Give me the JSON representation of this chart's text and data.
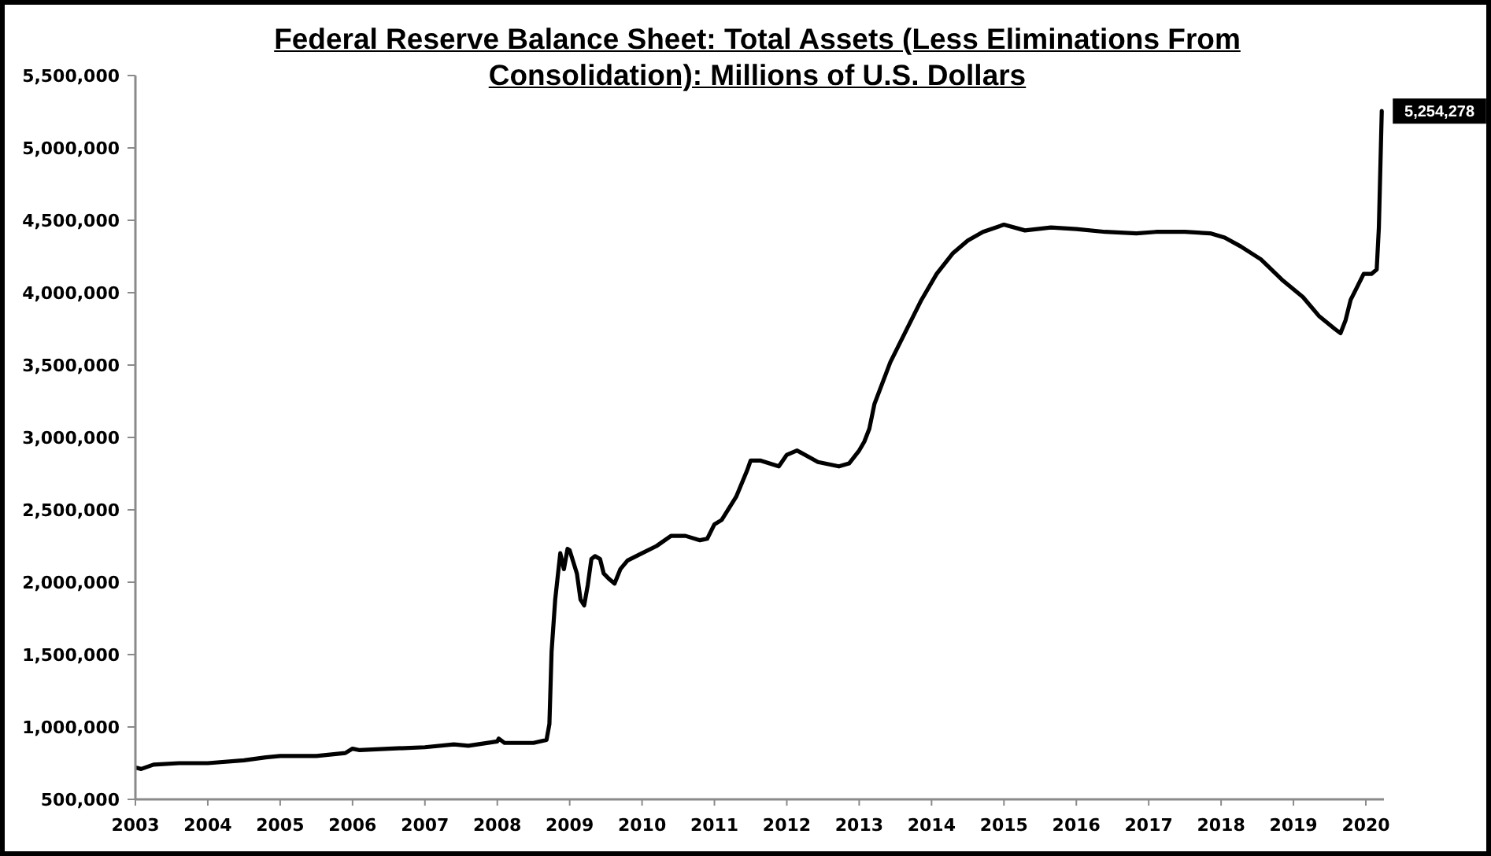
{
  "chart_data": {
    "type": "line",
    "title": "Federal Reserve Balance Sheet: Total Assets (Less Eliminations From Consolidation): Millions of U.S. Dollars",
    "x": [
      2003.0,
      2003.08,
      2003.25,
      2003.6,
      2004.0,
      2004.5,
      2004.8,
      2005.0,
      2005.5,
      2005.9,
      2006.0,
      2006.1,
      2006.5,
      2007.0,
      2007.4,
      2007.6,
      2008.0,
      2008.02,
      2008.1,
      2008.5,
      2008.68,
      2008.72,
      2008.75,
      2008.8,
      2008.87,
      2008.92,
      2008.97,
      2009.0,
      2009.1,
      2009.15,
      2009.2,
      2009.25,
      2009.3,
      2009.35,
      2009.42,
      2009.47,
      2009.55,
      2009.62,
      2009.7,
      2009.8,
      2010.0,
      2010.2,
      2010.4,
      2010.6,
      2010.8,
      2010.9,
      2011.0,
      2011.1,
      2011.3,
      2011.45,
      2011.5,
      2011.64,
      2011.89,
      2012.0,
      2012.14,
      2012.43,
      2012.72,
      2012.86,
      2013.0,
      2013.07,
      2013.14,
      2013.21,
      2013.43,
      2013.64,
      2013.86,
      2014.07,
      2014.29,
      2014.5,
      2014.71,
      2015.0,
      2015.29,
      2015.65,
      2016.0,
      2016.4,
      2016.83,
      2017.1,
      2017.5,
      2017.85,
      2018.05,
      2018.27,
      2018.55,
      2018.84,
      2019.13,
      2019.35,
      2019.57,
      2019.65,
      2019.72,
      2019.79,
      2019.86,
      2019.97,
      2020.08,
      2020.15,
      2020.18,
      2020.22
    ],
    "values": [
      720000,
      710000,
      740000,
      750000,
      750000,
      770000,
      790000,
      800000,
      800000,
      820000,
      850000,
      840000,
      850000,
      860000,
      880000,
      870000,
      900000,
      920000,
      890000,
      890000,
      910000,
      1020000,
      1520000,
      1880000,
      2200000,
      2090000,
      2230000,
      2220000,
      2060000,
      1880000,
      1840000,
      1980000,
      2160000,
      2180000,
      2160000,
      2060000,
      2020000,
      1990000,
      2090000,
      2150000,
      2200000,
      2250000,
      2320000,
      2320000,
      2290000,
      2300000,
      2400000,
      2430000,
      2590000,
      2770000,
      2840000,
      2840000,
      2800000,
      2880000,
      2910000,
      2830000,
      2800000,
      2820000,
      2910000,
      2970000,
      3060000,
      3230000,
      3520000,
      3730000,
      3950000,
      4130000,
      4270000,
      4360000,
      4420000,
      4470000,
      4430000,
      4450000,
      4440000,
      4420000,
      4410000,
      4420000,
      4420000,
      4410000,
      4380000,
      4320000,
      4230000,
      4090000,
      3970000,
      3840000,
      3750000,
      3720000,
      3810000,
      3950000,
      4020000,
      4130000,
      4130000,
      4160000,
      4450000,
      5254278
    ],
    "value_labels": [
      null,
      null,
      null,
      null,
      null,
      null,
      null,
      null,
      null,
      null,
      null,
      null,
      null,
      null,
      null,
      null,
      null,
      null,
      null,
      null,
      null,
      null,
      null,
      null,
      null,
      null,
      null,
      null,
      null,
      null,
      null,
      null,
      null,
      null,
      null,
      null,
      null,
      null,
      null,
      null,
      null,
      null,
      null,
      null,
      null,
      null,
      null,
      null,
      null,
      null,
      null,
      null,
      null,
      null,
      null,
      null,
      null,
      null,
      null,
      null,
      null,
      null,
      null,
      null,
      null,
      null,
      null,
      null,
      null,
      null,
      null,
      null,
      null,
      null,
      null,
      null,
      null,
      null,
      null,
      null,
      null,
      null,
      null,
      null,
      null,
      null,
      null,
      null,
      null,
      null,
      null,
      null,
      null,
      "5,254,278"
    ],
    "color": "#000000",
    "marker": "none",
    "xlim": [
      2003,
      2020.25
    ],
    "xticks": [
      2003,
      2004,
      2005,
      2006,
      2007,
      2008,
      2009,
      2010,
      2011,
      2012,
      2013,
      2014,
      2015,
      2016,
      2017,
      2018,
      2019,
      2020
    ],
    "ylim": [
      500000,
      5500000
    ],
    "yticks": [
      {
        "value": 500000,
        "label": "500,000"
      },
      {
        "value": 1000000,
        "label": "1,000,000"
      },
      {
        "value": 1500000,
        "label": "1,500,000"
      },
      {
        "value": 2000000,
        "label": "2,000,000"
      },
      {
        "value": 2500000,
        "label": "2,500,000"
      },
      {
        "value": 3000000,
        "label": "3,000,000"
      },
      {
        "value": 3500000,
        "label": "3,500,000"
      },
      {
        "value": 4000000,
        "label": "4,000,000"
      },
      {
        "value": 4500000,
        "label": "4,500,000"
      },
      {
        "value": 5000000,
        "label": "5,000,000"
      },
      {
        "value": 5500000,
        "label": "5,500,000"
      }
    ]
  }
}
